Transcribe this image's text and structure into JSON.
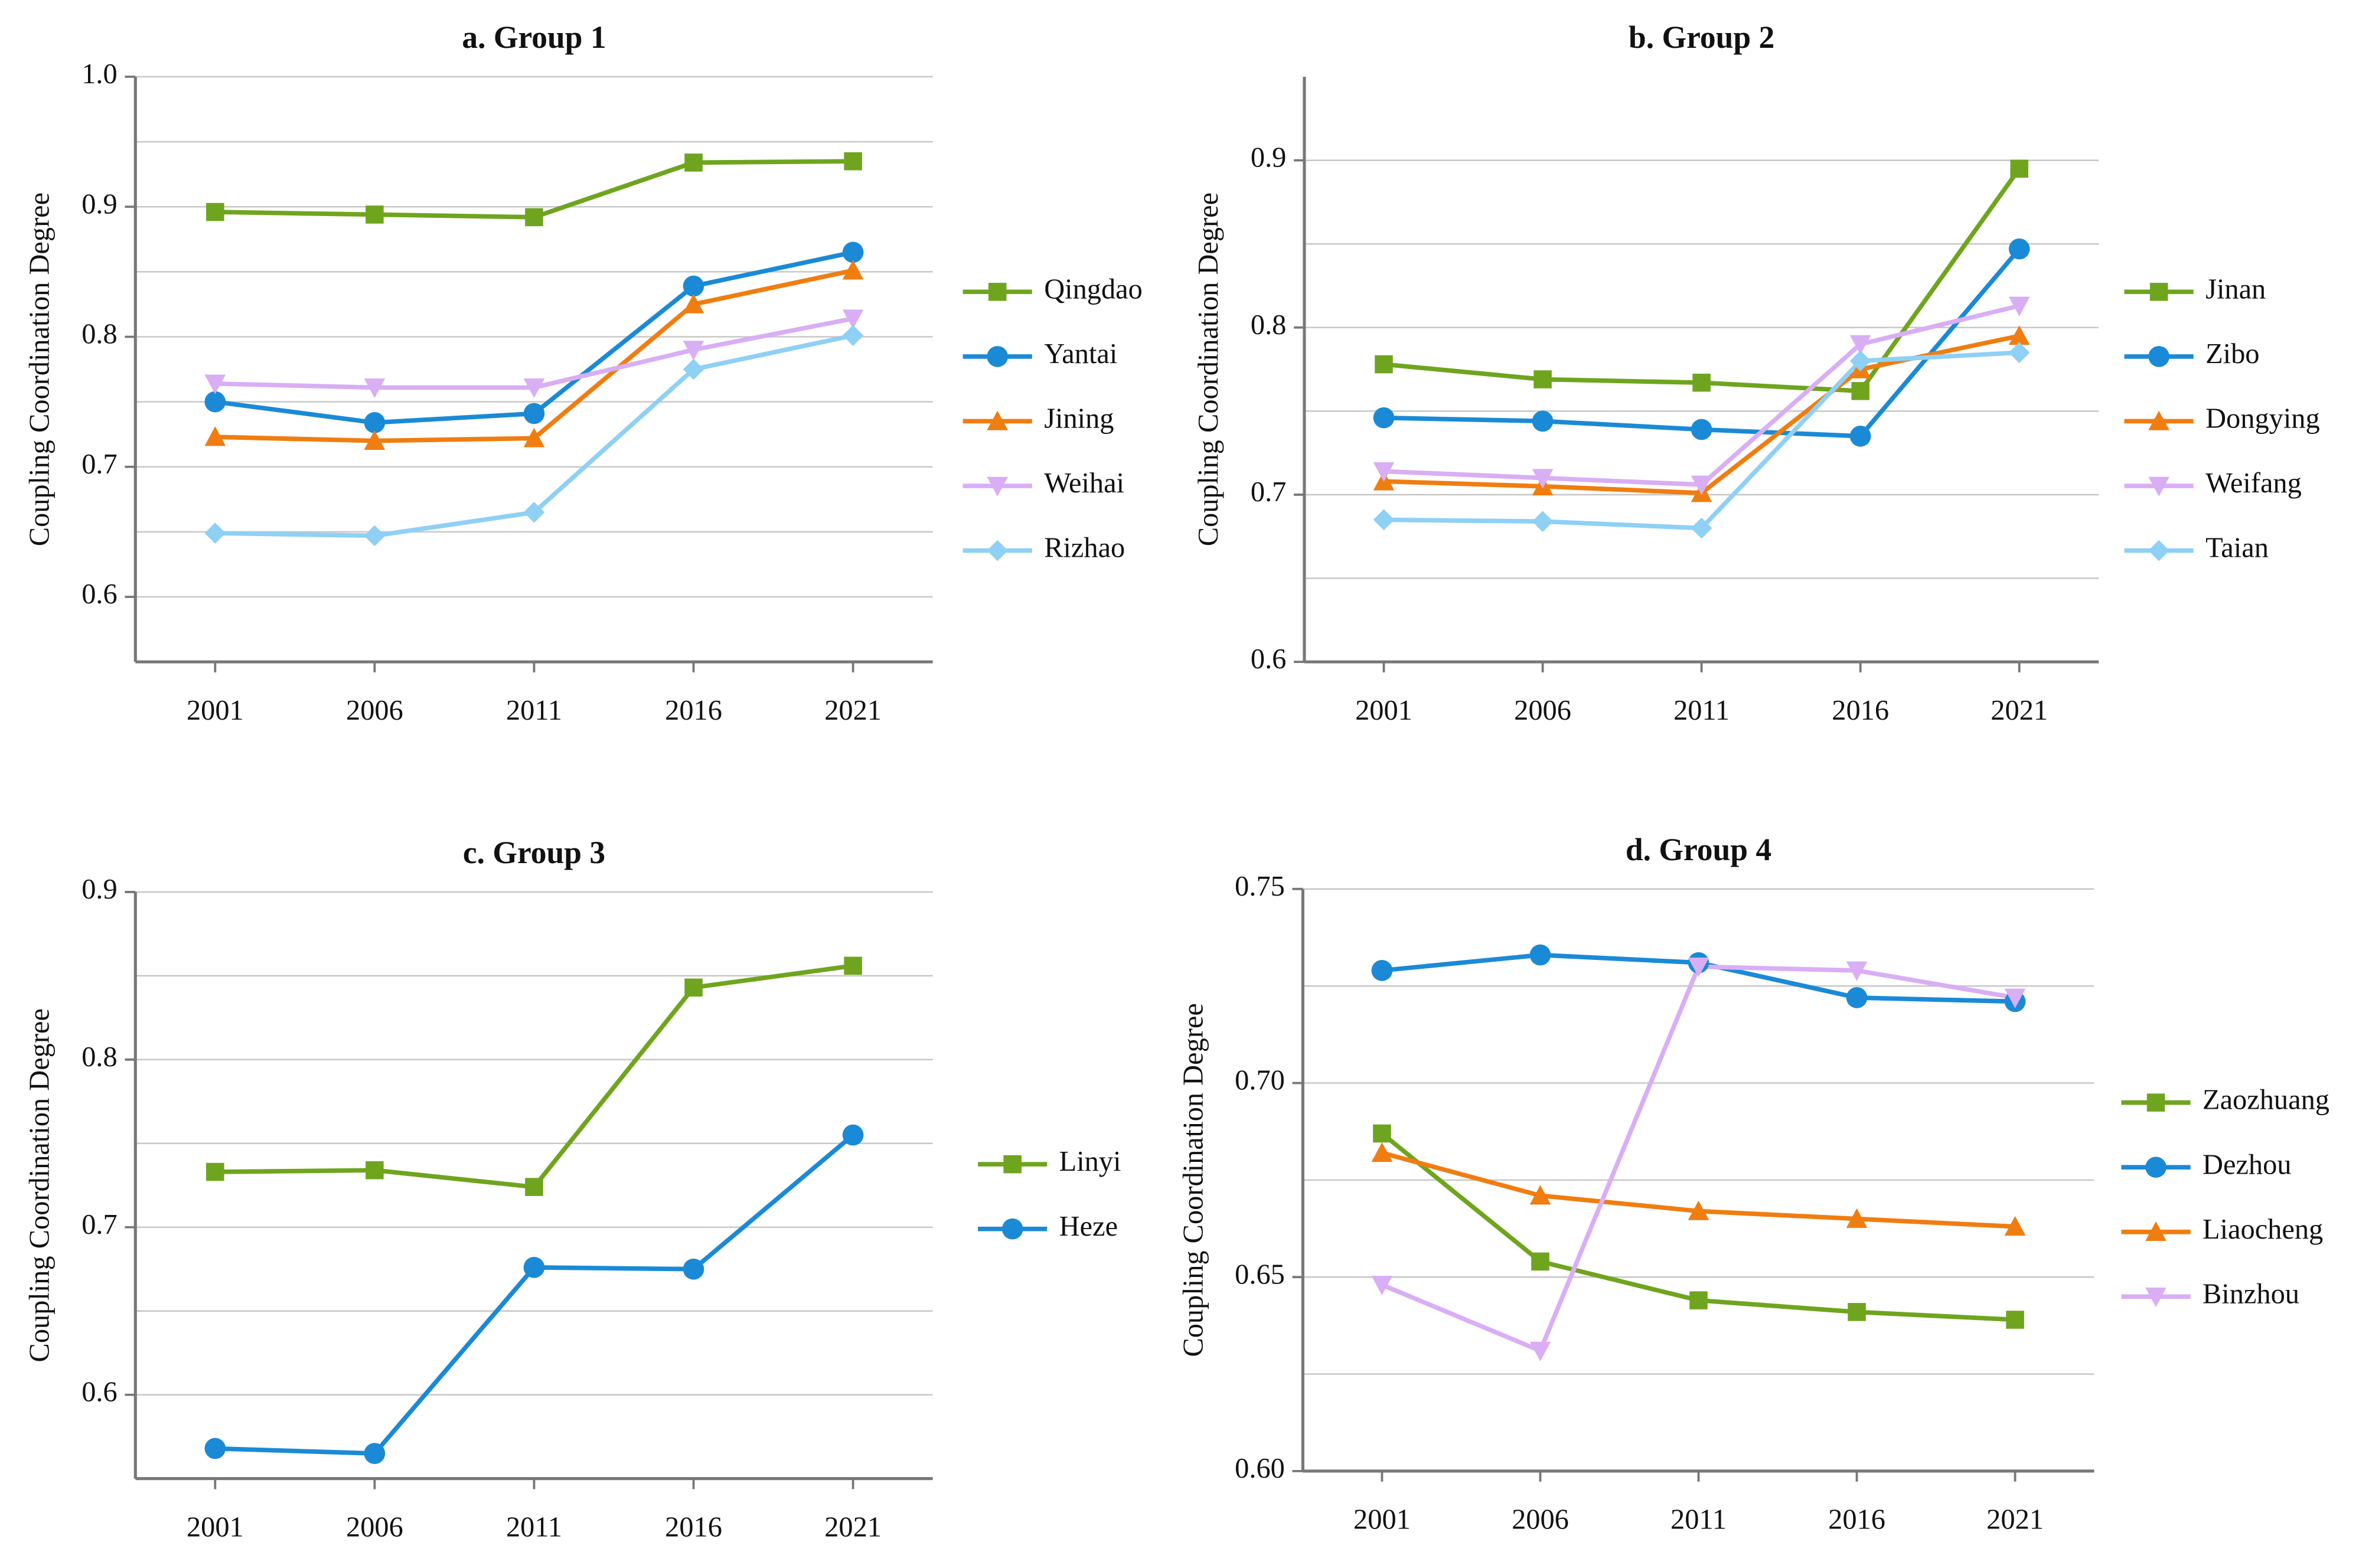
{
  "chart_data": [
    {
      "type": "line",
      "title": "a. Group 1",
      "y_label": "Coupling Coordination Degree",
      "categories": [
        "2001",
        "2006",
        "2011",
        "2016",
        "2021"
      ],
      "ylim": [
        0.55,
        1.0
      ],
      "yticks": [
        0.6,
        0.7,
        0.8,
        0.9,
        {
          "value": 1,
          "label": "1.0"
        }
      ],
      "minor_gridlines": [
        0.65,
        0.75,
        0.85,
        0.95
      ],
      "grid": true,
      "series": [
        {
          "name": "Qingdao",
          "color": "#6fa51e",
          "marker": "square",
          "values": [
            0.896,
            0.894,
            0.892,
            0.934,
            0.935
          ]
        },
        {
          "name": "Yantai",
          "color": "#1a8ad6",
          "marker": "circle",
          "values": [
            0.75,
            0.734,
            0.741,
            0.839,
            0.865
          ]
        },
        {
          "name": "Jining",
          "color": "#f07d10",
          "marker": "triangle-up",
          "values": [
            0.723,
            0.72,
            0.722,
            0.825,
            0.851
          ]
        },
        {
          "name": "Weihai",
          "color": "#d9aef5",
          "marker": "triangle-down",
          "values": [
            0.764,
            0.761,
            0.761,
            0.79,
            0.814
          ]
        },
        {
          "name": "Rizhao",
          "color": "#8fd0f5",
          "marker": "diamond",
          "values": [
            0.649,
            0.647,
            0.665,
            0.775,
            0.801
          ]
        }
      ]
    },
    {
      "type": "line",
      "title": "b. Group 2",
      "y_label": "Coupling Coordination Degree",
      "categories": [
        "2001",
        "2006",
        "2011",
        "2016",
        "2021"
      ],
      "ylim": [
        0.6,
        0.95
      ],
      "yticks": [
        0.6,
        0.7,
        0.8,
        0.9
      ],
      "minor_gridlines": [
        0.65,
        0.75,
        0.85
      ],
      "grid": true,
      "series": [
        {
          "name": "Jinan",
          "color": "#6fa51e",
          "marker": "square",
          "values": [
            0.778,
            0.769,
            0.767,
            0.762,
            0.895
          ]
        },
        {
          "name": "Zibo",
          "color": "#1a8ad6",
          "marker": "circle",
          "values": [
            0.746,
            0.744,
            0.739,
            0.735,
            0.847
          ]
        },
        {
          "name": "Dongying",
          "color": "#f07d10",
          "marker": "triangle-up",
          "values": [
            0.708,
            0.705,
            0.701,
            0.775,
            0.795
          ]
        },
        {
          "name": "Weifang",
          "color": "#d9aef5",
          "marker": "triangle-down",
          "values": [
            0.714,
            0.71,
            0.706,
            0.79,
            0.813
          ]
        },
        {
          "name": "Taian",
          "color": "#8fd0f5",
          "marker": "diamond",
          "values": [
            0.685,
            0.684,
            0.68,
            0.78,
            0.785
          ]
        }
      ]
    },
    {
      "type": "line",
      "title": "c. Group 3",
      "y_label": "Coupling Coordination Degree",
      "categories": [
        "2001",
        "2006",
        "2011",
        "2016",
        "2021"
      ],
      "ylim": [
        0.55,
        0.9
      ],
      "yticks": [
        0.6,
        0.7,
        0.8,
        0.9
      ],
      "minor_gridlines": [
        0.65,
        0.75,
        0.85
      ],
      "grid": true,
      "series": [
        {
          "name": "Linyi",
          "color": "#6fa51e",
          "marker": "square",
          "values": [
            0.733,
            0.734,
            0.724,
            0.843,
            0.856
          ]
        },
        {
          "name": "Heze",
          "color": "#1a8ad6",
          "marker": "circle",
          "values": [
            0.568,
            0.565,
            0.676,
            0.675,
            0.755
          ]
        }
      ]
    },
    {
      "type": "line",
      "title": "d. Group 4",
      "y_label": "Coupling Coordination Degree",
      "categories": [
        "2001",
        "2006",
        "2011",
        "2016",
        "2021"
      ],
      "ylim": [
        0.6,
        0.75
      ],
      "yticks": [
        {
          "value": 0.6,
          "label": "0.60"
        },
        0.65,
        {
          "value": 0.7,
          "label": "0.70"
        },
        0.75
      ],
      "minor_gridlines": [
        0.625,
        0.675,
        0.725
      ],
      "grid": true,
      "series": [
        {
          "name": "Zaozhuang",
          "color": "#6fa51e",
          "marker": "square",
          "values": [
            0.687,
            0.654,
            0.644,
            0.641,
            0.639
          ]
        },
        {
          "name": "Dezhou",
          "color": "#1a8ad6",
          "marker": "circle",
          "values": [
            0.729,
            0.733,
            0.731,
            0.722,
            0.721
          ]
        },
        {
          "name": "Liaocheng",
          "color": "#f07d10",
          "marker": "triangle-up",
          "values": [
            0.682,
            0.671,
            0.667,
            0.665,
            0.663
          ]
        },
        {
          "name": "Binzhou",
          "color": "#d9aef5",
          "marker": "triangle-down",
          "values": [
            0.648,
            0.631,
            0.73,
            0.729,
            0.722
          ]
        }
      ]
    }
  ]
}
